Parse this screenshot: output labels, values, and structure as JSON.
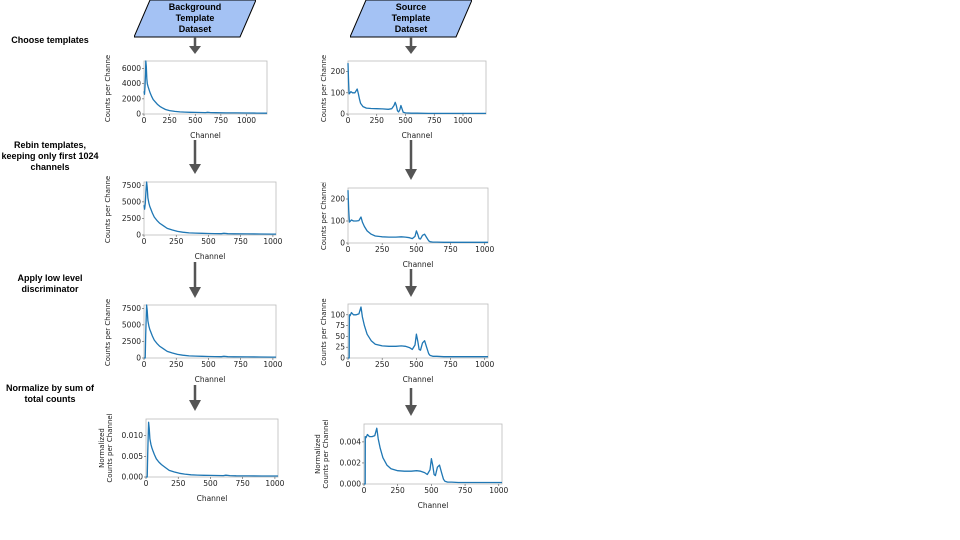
{
  "datasets": {
    "background": {
      "lines": [
        "Background",
        "Template",
        "Dataset"
      ]
    },
    "source": {
      "lines": [
        "Source",
        "Template",
        "Dataset"
      ]
    }
  },
  "steps": [
    {
      "label": "Choose templates"
    },
    {
      "label": "Rebin templates, keeping only first 1024 channels"
    },
    {
      "label": "Apply low level discriminator"
    },
    {
      "label": "Normalize by sum of total counts"
    }
  ],
  "colors": {
    "dataset_fill": "#a4c2f4",
    "line": "#1f77b4",
    "arrow": "#555555"
  },
  "chart_data": [
    {
      "id": "bg-choose",
      "type": "line",
      "xlabel": "Channel",
      "ylabel": "Counts per Channel",
      "xlim": [
        0,
        1200
      ],
      "ylim": [
        0,
        7000
      ],
      "xticks": [
        0,
        250,
        500,
        750,
        1000
      ],
      "yticks": [
        0,
        2000,
        4000,
        6000
      ],
      "ytick_labels": [
        "0",
        "2000",
        "4000",
        "6000"
      ],
      "series": [
        {
          "x": [
            0,
            5,
            10,
            15,
            18,
            22,
            27,
            32,
            40,
            50,
            60,
            75,
            90,
            110,
            130,
            155,
            180,
            210,
            250,
            300,
            350,
            400,
            450,
            500,
            550,
            600,
            620,
            650,
            700,
            800,
            900,
            1000,
            1100,
            1200
          ],
          "y": [
            3000,
            2600,
            3600,
            5300,
            7000,
            6300,
            4700,
            4000,
            3600,
            3200,
            2800,
            2300,
            1900,
            1600,
            1300,
            1000,
            800,
            600,
            450,
            350,
            280,
            250,
            230,
            210,
            200,
            190,
            230,
            190,
            170,
            150,
            140,
            130,
            120,
            110
          ]
        }
      ]
    },
    {
      "id": "src-choose",
      "type": "line",
      "xlabel": "Channel",
      "ylabel": "Counts per Channel",
      "xlim": [
        0,
        1200
      ],
      "ylim": [
        0,
        250
      ],
      "xticks": [
        0,
        250,
        500,
        750,
        1000
      ],
      "yticks": [
        0,
        100,
        200
      ],
      "ytick_labels": [
        "0",
        "100",
        "200"
      ],
      "series": [
        {
          "x": [
            0,
            5,
            10,
            15,
            25,
            40,
            60,
            80,
            90,
            100,
            110,
            130,
            160,
            200,
            250,
            300,
            350,
            380,
            400,
            410,
            420,
            430,
            440,
            450,
            460,
            470,
            480,
            500,
            550,
            600,
            700,
            800,
            900,
            1000,
            1100,
            1200
          ],
          "y": [
            240,
            150,
            95,
            98,
            105,
            100,
            100,
            118,
            95,
            70,
            50,
            35,
            28,
            26,
            25,
            24,
            22,
            25,
            40,
            55,
            40,
            15,
            10,
            20,
            40,
            25,
            8,
            5,
            4,
            4,
            3,
            3,
            3,
            3,
            3,
            3
          ]
        }
      ]
    },
    {
      "id": "bg-rebin",
      "type": "line",
      "xlabel": "Channel",
      "ylabel": "Counts per Channel",
      "xlim": [
        0,
        1024
      ],
      "ylim": [
        0,
        8000
      ],
      "xticks": [
        0,
        250,
        500,
        750,
        1000
      ],
      "yticks": [
        0,
        2500,
        5000,
        7500
      ],
      "ytick_labels": [
        "0",
        "2500",
        "5000",
        "7500"
      ],
      "series": [
        {
          "x": [
            0,
            5,
            10,
            15,
            20,
            25,
            30,
            38,
            45,
            55,
            65,
            80,
            100,
            120,
            150,
            180,
            220,
            260,
            300,
            350,
            400,
            450,
            500,
            550,
            600,
            620,
            650,
            700,
            800,
            900,
            1000,
            1024
          ],
          "y": [
            4500,
            3900,
            4800,
            6500,
            8000,
            7200,
            5600,
            4800,
            4300,
            3800,
            3300,
            2700,
            2200,
            1800,
            1400,
            1000,
            750,
            550,
            420,
            320,
            280,
            250,
            230,
            210,
            200,
            260,
            200,
            180,
            160,
            150,
            140,
            140
          ]
        }
      ]
    },
    {
      "id": "src-rebin",
      "type": "line",
      "xlabel": "Channel",
      "ylabel": "Counts per Channel",
      "xlim": [
        0,
        1024
      ],
      "ylim": [
        0,
        250
      ],
      "xticks": [
        0,
        250,
        500,
        750,
        1000
      ],
      "yticks": [
        0,
        100,
        200
      ],
      "ytick_labels": [
        "0",
        "100",
        "200"
      ],
      "series": [
        {
          "x": [
            0,
            5,
            10,
            15,
            25,
            40,
            60,
            80,
            95,
            105,
            120,
            140,
            170,
            200,
            250,
            300,
            350,
            390,
            420,
            450,
            470,
            490,
            500,
            510,
            520,
            530,
            545,
            560,
            575,
            590,
            600,
            620,
            650,
            700,
            800,
            900,
            1000,
            1024
          ],
          "y": [
            240,
            150,
            95,
            98,
            105,
            100,
            100,
            102,
            118,
            95,
            75,
            55,
            40,
            32,
            28,
            27,
            27,
            28,
            27,
            24,
            20,
            30,
            55,
            40,
            20,
            18,
            35,
            40,
            25,
            10,
            6,
            4,
            4,
            3,
            3,
            3,
            3,
            3
          ]
        }
      ]
    },
    {
      "id": "bg-discriminator",
      "type": "line",
      "xlabel": "Channel",
      "ylabel": "Counts per Channel",
      "xlim": [
        0,
        1024
      ],
      "ylim": [
        0,
        8000
      ],
      "xticks": [
        0,
        250,
        500,
        750,
        1000
      ],
      "yticks": [
        0,
        2500,
        5000,
        7500
      ],
      "ytick_labels": [
        "0",
        "2500",
        "5000",
        "7500"
      ],
      "series": [
        {
          "x": [
            0,
            9,
            10,
            13,
            16,
            20,
            25,
            30,
            38,
            45,
            55,
            65,
            80,
            100,
            120,
            150,
            180,
            220,
            260,
            300,
            350,
            400,
            450,
            500,
            550,
            600,
            620,
            650,
            700,
            800,
            900,
            1000,
            1024
          ],
          "y": [
            0,
            0,
            500,
            3500,
            5500,
            8000,
            7200,
            5600,
            4800,
            4300,
            3800,
            3300,
            2700,
            2200,
            1800,
            1400,
            1000,
            750,
            550,
            420,
            320,
            280,
            250,
            230,
            210,
            200,
            260,
            200,
            180,
            160,
            150,
            140,
            140
          ]
        }
      ]
    },
    {
      "id": "src-discriminator",
      "type": "line",
      "xlabel": "Channel",
      "ylabel": "Counts per Channel",
      "xlim": [
        0,
        1024
      ],
      "ylim": [
        0,
        125
      ],
      "xticks": [
        0,
        250,
        500,
        750,
        1000
      ],
      "yticks": [
        0,
        25,
        50,
        75,
        100
      ],
      "ytick_labels": [
        "0",
        "25",
        "50",
        "75",
        "100"
      ],
      "series": [
        {
          "x": [
            0,
            9,
            10,
            15,
            25,
            40,
            60,
            80,
            95,
            105,
            120,
            140,
            170,
            200,
            250,
            300,
            350,
            390,
            420,
            450,
            470,
            490,
            500,
            510,
            520,
            530,
            545,
            560,
            575,
            590,
            600,
            620,
            650,
            700,
            800,
            900,
            1000,
            1024
          ],
          "y": [
            0,
            0,
            100,
            98,
            105,
            100,
            100,
            102,
            118,
            95,
            75,
            55,
            40,
            32,
            28,
            27,
            27,
            28,
            27,
            24,
            20,
            30,
            55,
            40,
            20,
            18,
            35,
            40,
            25,
            10,
            6,
            4,
            4,
            3,
            3,
            3,
            3,
            3
          ]
        }
      ]
    },
    {
      "id": "bg-normalize",
      "type": "line",
      "xlabel": "Channel",
      "ylabel": "Normalized Counts per Channel",
      "xlim": [
        0,
        1024
      ],
      "ylim": [
        0,
        0.014
      ],
      "xticks": [
        0,
        250,
        500,
        750,
        1000
      ],
      "yticks": [
        0,
        0.005,
        0.01
      ],
      "ytick_labels": [
        "0.000",
        "0.005",
        "0.010"
      ],
      "series": [
        {
          "x": [
            0,
            9,
            10,
            13,
            16,
            20,
            25,
            30,
            38,
            45,
            55,
            65,
            80,
            100,
            120,
            150,
            180,
            220,
            260,
            300,
            350,
            400,
            450,
            500,
            550,
            600,
            620,
            650,
            700,
            800,
            900,
            1000,
            1024
          ],
          "y": [
            0,
            0,
            0.0008,
            0.0055,
            0.009,
            0.0132,
            0.0118,
            0.0092,
            0.0079,
            0.0071,
            0.0062,
            0.0054,
            0.0044,
            0.0036,
            0.003,
            0.0023,
            0.0016,
            0.0012,
            0.0009,
            0.0007,
            0.00053,
            0.00046,
            0.00041,
            0.00038,
            0.00035,
            0.00033,
            0.00043,
            0.00033,
            0.0003,
            0.00026,
            0.00025,
            0.00023,
            0.00023
          ]
        }
      ]
    },
    {
      "id": "src-normalize",
      "type": "line",
      "xlabel": "Channel",
      "ylabel": "Normalized Counts per Channel",
      "xlim": [
        0,
        1024
      ],
      "ylim": [
        0,
        0.0057
      ],
      "xticks": [
        0,
        250,
        500,
        750,
        1000
      ],
      "yticks": [
        0,
        0.002,
        0.004
      ],
      "ytick_labels": [
        "0.000",
        "0.002",
        "0.004"
      ],
      "series": [
        {
          "x": [
            0,
            9,
            10,
            15,
            25,
            40,
            60,
            80,
            95,
            105,
            120,
            140,
            170,
            200,
            250,
            300,
            350,
            390,
            420,
            450,
            470,
            490,
            500,
            510,
            520,
            530,
            545,
            560,
            575,
            590,
            600,
            620,
            650,
            700,
            800,
            900,
            1000,
            1024
          ],
          "y": [
            0,
            0,
            0.0045,
            0.0044,
            0.0047,
            0.0045,
            0.0045,
            0.0046,
            0.0053,
            0.0043,
            0.0034,
            0.0025,
            0.0018,
            0.00145,
            0.00126,
            0.00122,
            0.00122,
            0.00126,
            0.00122,
            0.00108,
            0.0009,
            0.00135,
            0.0024,
            0.0018,
            0.0009,
            0.0008,
            0.0016,
            0.0018,
            0.0011,
            0.00045,
            0.00027,
            0.00018,
            0.00018,
            0.00014,
            0.00014,
            0.00014,
            0.00014,
            0.00014
          ]
        }
      ]
    }
  ]
}
